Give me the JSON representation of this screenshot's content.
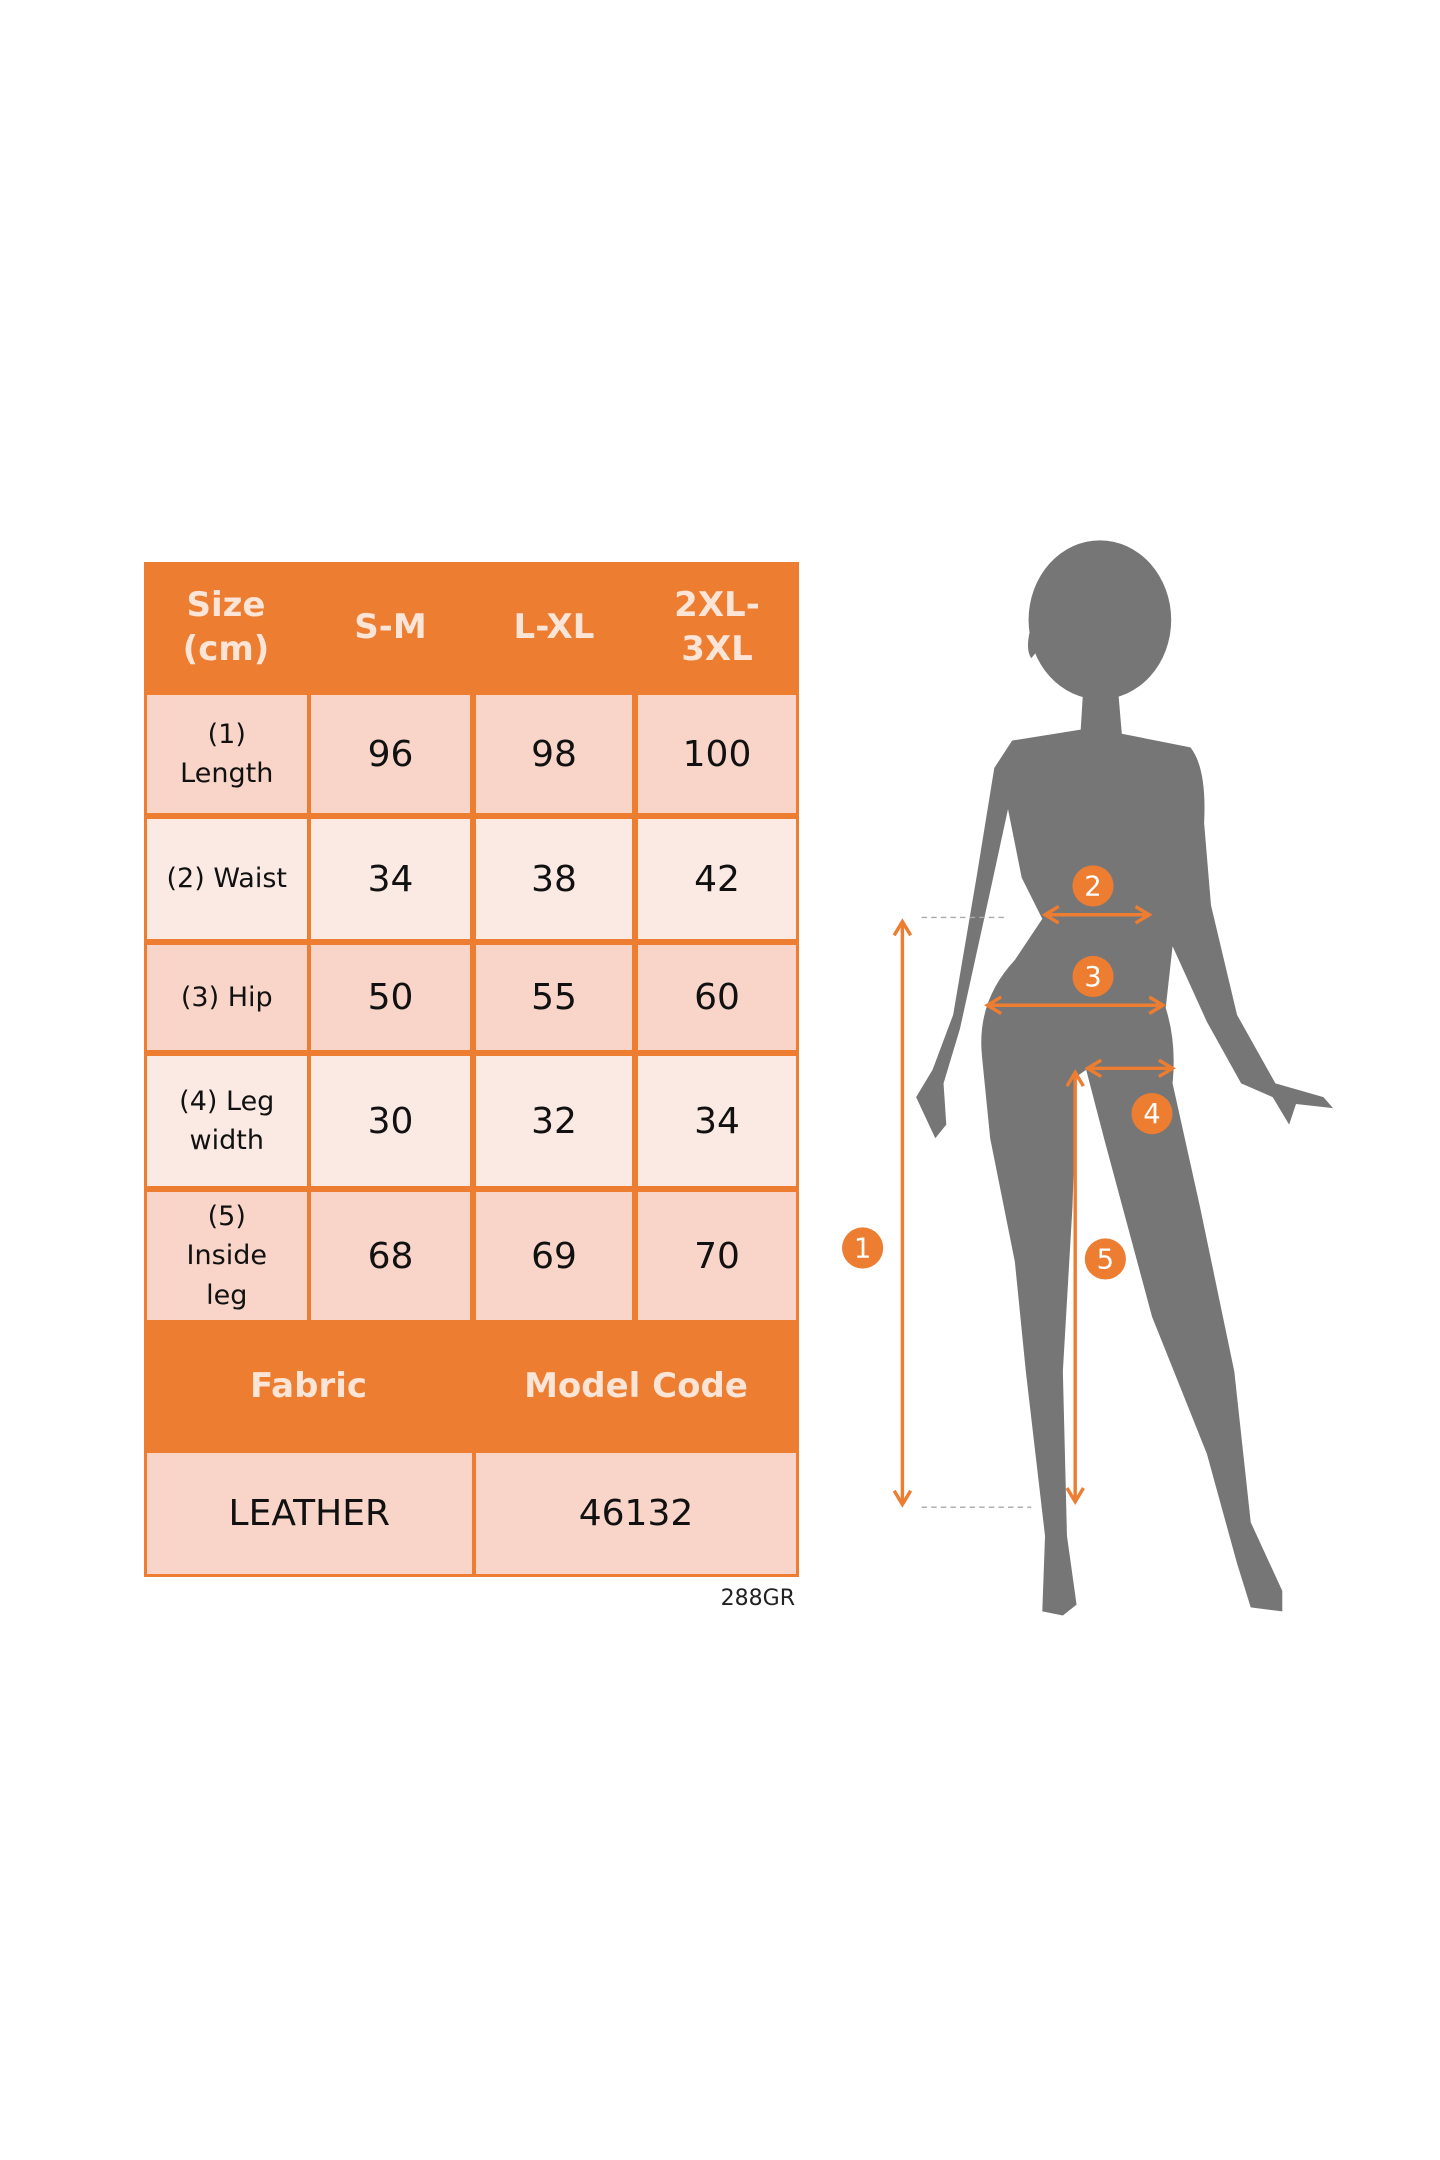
{
  "table": {
    "header": [
      "Size\n(cm)",
      "S-M",
      "L-XL",
      "2XL-\n3XL"
    ],
    "rows": [
      {
        "label": "(1)\nLength",
        "values": [
          "96",
          "98",
          "100"
        ]
      },
      {
        "label": "(2) Waist",
        "values": [
          "34",
          "38",
          "42"
        ]
      },
      {
        "label": "(3) Hip",
        "values": [
          "50",
          "55",
          "60"
        ]
      },
      {
        "label": "(4) Leg\nwidth",
        "values": [
          "30",
          "32",
          "34"
        ]
      },
      {
        "label": "(5)\nInside\nleg",
        "values": [
          "68",
          "69",
          "70"
        ]
      }
    ],
    "footer_header": [
      "Fabric",
      "Model Code"
    ],
    "footer_values": [
      "LEATHER",
      "46132"
    ]
  },
  "product_code": "288GR",
  "figure": {
    "markers": [
      "1",
      "2",
      "3",
      "4",
      "5"
    ]
  },
  "colors": {
    "accent": "#ED7D31",
    "silhouette": "#767676",
    "cell_dark": "#F8D5C8",
    "cell_light": "#FBEAE4"
  }
}
